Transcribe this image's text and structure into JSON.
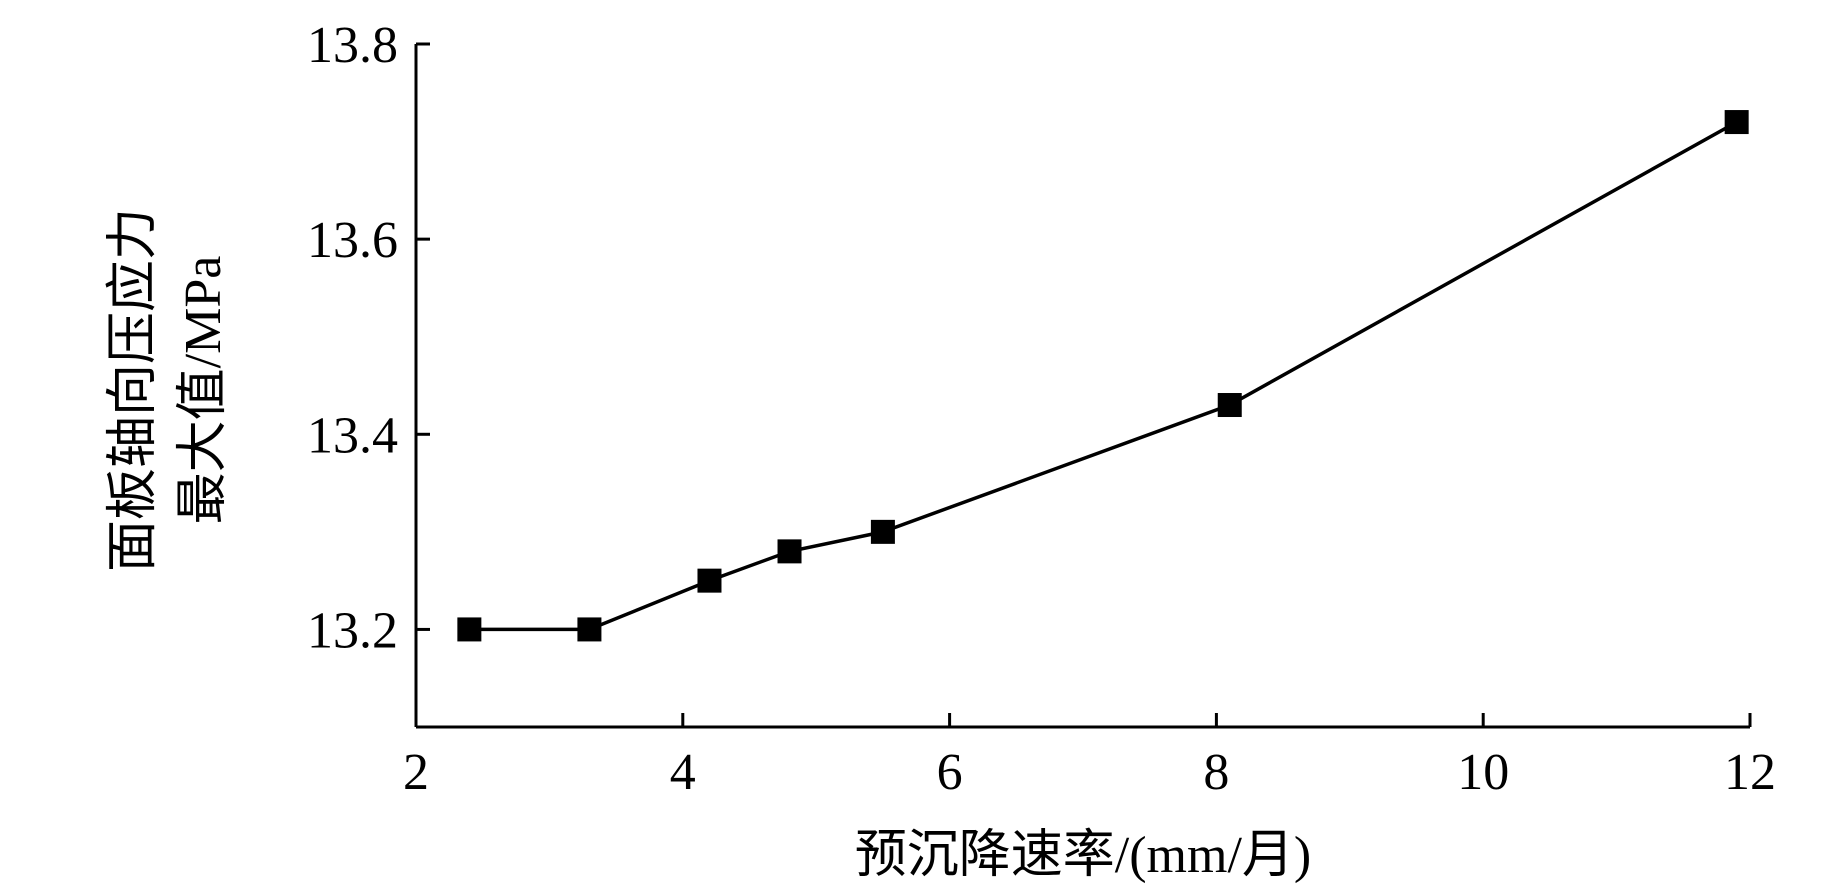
{
  "chart_data": {
    "type": "line",
    "xlabel": "预沉降速率/(mm/月)",
    "ylabel_lines": [
      "面板轴向压应力",
      "最大值/MPa"
    ],
    "xlim": [
      2,
      12
    ],
    "ylim": [
      13.1,
      13.8
    ],
    "xticks": [
      2,
      4,
      6,
      8,
      10,
      12
    ],
    "xtick_labels": [
      "2",
      "4",
      "6",
      "8",
      "10",
      "12"
    ],
    "yticks": [
      13.2,
      13.4,
      13.6,
      13.8
    ],
    "ytick_labels": [
      "13.2",
      "13.4",
      "13.6",
      "13.8"
    ],
    "grid": false,
    "marker": "square",
    "colors": {
      "line": "#000000",
      "marker": "#000000"
    },
    "series": [
      {
        "x": [
          2.4,
          3.3,
          4.2,
          4.8,
          5.5,
          8.1,
          11.9
        ],
        "y": [
          13.2,
          13.2,
          13.25,
          13.28,
          13.3,
          13.43,
          13.72
        ]
      }
    ]
  }
}
